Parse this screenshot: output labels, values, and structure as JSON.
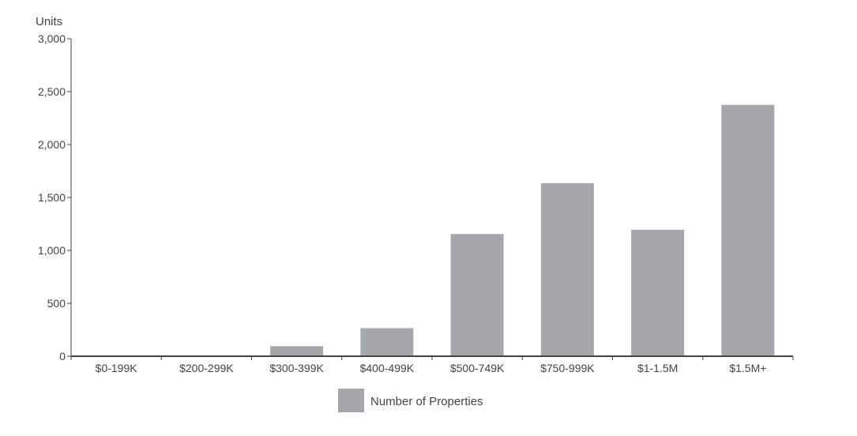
{
  "chart_data": {
    "type": "bar",
    "title": "",
    "ylabel": "Units",
    "xlabel": "",
    "ylim": [
      0,
      3000
    ],
    "yticks": [
      0,
      500,
      1000,
      1500,
      2000,
      2500,
      3000
    ],
    "ytick_labels": [
      "0",
      "500",
      "1,000",
      "1,500",
      "2,000",
      "2,500",
      "3,000"
    ],
    "categories": [
      "$0-199K",
      "$200-299K",
      "$300-399K",
      "$400-499K",
      "$500-749K",
      "$750-999K",
      "$1-1.5M",
      "$1.5M+"
    ],
    "series": [
      {
        "name": "Number of Properties",
        "values": [
          0,
          0,
          95,
          265,
          1155,
          1635,
          1195,
          2375
        ],
        "color": "#a6a7aa"
      }
    ],
    "grid": false,
    "legend_position": "bottom-center"
  },
  "colors": {
    "axis": "#444444",
    "text": "#444444",
    "bar": "#a6a7aa"
  }
}
